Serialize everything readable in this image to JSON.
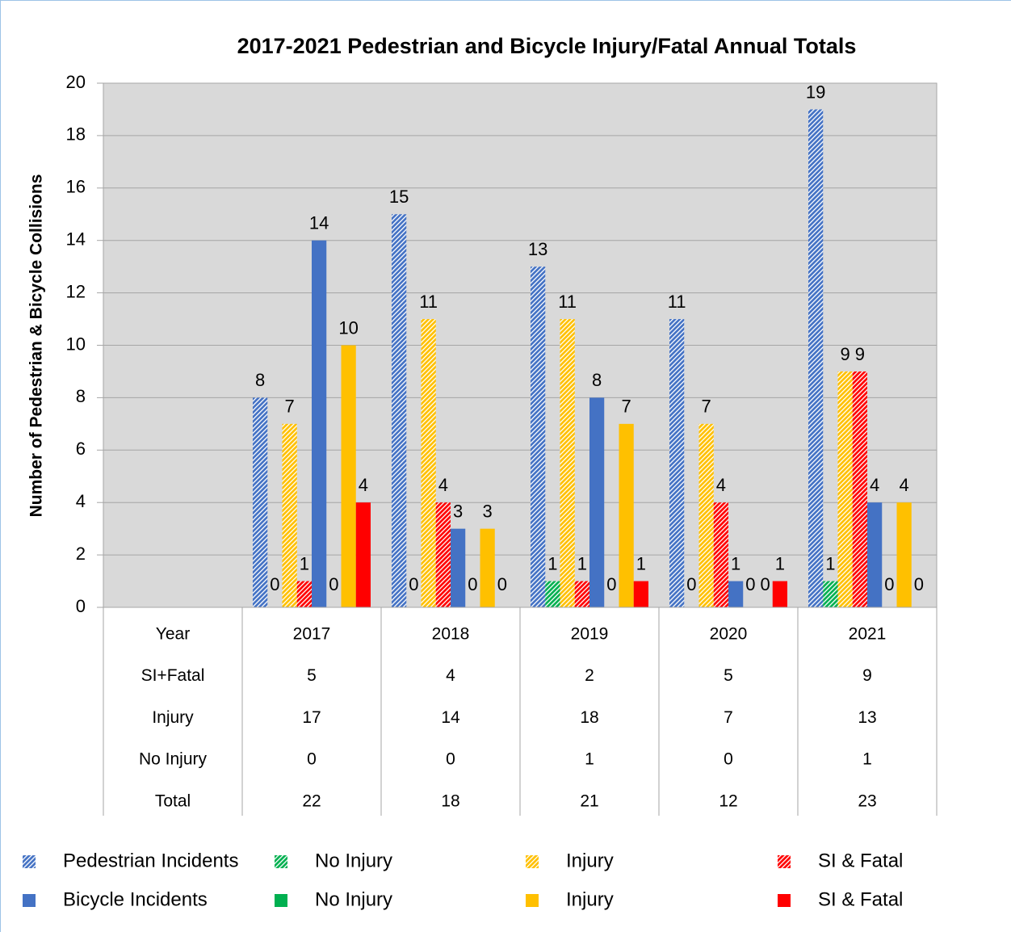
{
  "chart_data": {
    "type": "bar",
    "title": "2017-2021 Pedestrian and Bicycle Injury/Fatal Annual Totals",
    "y_axis_label": "Number of Pedestrian & Bicycle Collisions",
    "categories": [
      null,
      "2017",
      "2018",
      "2019",
      "2020",
      "2021"
    ],
    "series": [
      {
        "name": "Pedestrian Incidents",
        "color": "#4472c4",
        "pattern": "hatched",
        "values": [
          null,
          8,
          15,
          13,
          11,
          19
        ]
      },
      {
        "name": "No Injury",
        "color": "#00b050",
        "pattern": "hatched",
        "values": [
          null,
          0,
          0,
          1,
          0,
          1
        ]
      },
      {
        "name": "Injury",
        "color": "#ffc000",
        "pattern": "hatched",
        "values": [
          null,
          7,
          11,
          11,
          7,
          9
        ]
      },
      {
        "name": "SI & Fatal",
        "color": "#ff0000",
        "pattern": "hatched",
        "values": [
          null,
          1,
          4,
          1,
          4,
          9
        ]
      },
      {
        "name": "Bicycle Incidents",
        "color": "#4472c4",
        "pattern": "solid",
        "values": [
          null,
          14,
          3,
          8,
          1,
          4
        ]
      },
      {
        "name": "No Injury",
        "color": "#00b050",
        "pattern": "solid",
        "values": [
          null,
          0,
          0,
          0,
          0,
          0
        ]
      },
      {
        "name": "Injury",
        "color": "#ffc000",
        "pattern": "solid",
        "values": [
          null,
          10,
          3,
          7,
          0,
          4
        ]
      },
      {
        "name": "SI & Fatal",
        "color": "#ff0000",
        "pattern": "solid",
        "values": [
          null,
          4,
          0,
          1,
          1,
          0
        ]
      }
    ],
    "ylim": [
      0,
      20
    ],
    "yticks": [
      0,
      2,
      4,
      6,
      8,
      10,
      12,
      14,
      16,
      18,
      20
    ],
    "grid": true,
    "data_table": {
      "header": "Year",
      "rows": [
        {
          "label": "SI+Fatal",
          "values": [
            5,
            4,
            2,
            5,
            9
          ]
        },
        {
          "label": "Injury",
          "values": [
            17,
            14,
            18,
            7,
            13
          ]
        },
        {
          "label": "No Injury",
          "values": [
            0,
            0,
            1,
            0,
            1
          ]
        },
        {
          "label": "Total",
          "values": [
            22,
            18,
            21,
            12,
            23
          ]
        }
      ]
    },
    "legend": "bottom"
  }
}
